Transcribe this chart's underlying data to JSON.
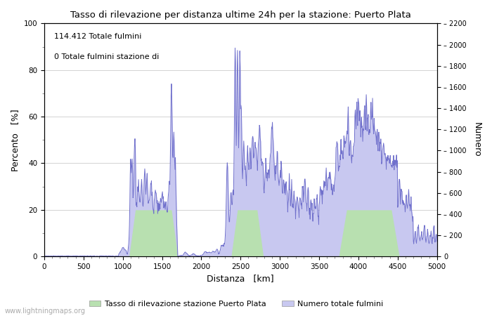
{
  "title": "Tasso di rilevazione per distanza ultime 24h per la stazione: Puerto Plata",
  "xlabel": "Distanza   [km]",
  "ylabel_left": "Percento   [%]",
  "ylabel_right": "Numero",
  "annotation_line1": "114.412 Totale fulmini",
  "annotation_line2": "0 Totale fulmini stazione di",
  "xlim": [
    0,
    5000
  ],
  "ylim_left": [
    0,
    100
  ],
  "ylim_right": [
    0,
    2200
  ],
  "xticks": [
    0,
    500,
    1000,
    1500,
    2000,
    2500,
    3000,
    3500,
    4000,
    4500,
    5000
  ],
  "yticks_left": [
    0,
    20,
    40,
    60,
    80,
    100
  ],
  "yticks_right": [
    0,
    200,
    400,
    600,
    800,
    1000,
    1200,
    1400,
    1600,
    1800,
    2000,
    2200
  ],
  "legend_label1": "Tasso di rilevazione stazione Puerto Plata",
  "legend_label2": "Numero totale fulmini",
  "fill_color_green": "#b8e0b0",
  "fill_color_blue": "#c8c8f0",
  "line_color": "#7070cc",
  "watermark": "www.lightningmaps.org",
  "background_color": "#ffffff",
  "grid_color": "#cccccc"
}
